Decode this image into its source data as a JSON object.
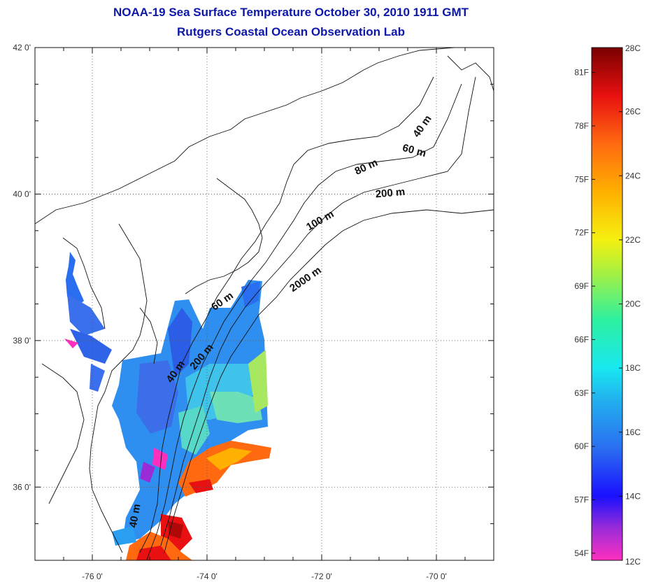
{
  "header": {
    "title": "NOAA-19 Sea Surface Temperature October 30, 2010 1911 GMT",
    "subtitle": "Rutgers Coastal Ocean Observation Lab"
  },
  "map": {
    "lon_range": [
      -77,
      -69
    ],
    "lat_range": [
      35,
      42
    ],
    "lat_labels": [
      {
        "lat": 42,
        "label": "42 0'"
      },
      {
        "lat": 40,
        "label": "40 0'"
      },
      {
        "lat": 38,
        "label": "38 0'"
      },
      {
        "lat": 36,
        "label": "36 0'"
      }
    ],
    "lon_labels": [
      {
        "lon": -76,
        "label": "-76 0'"
      },
      {
        "lon": -74,
        "label": "-74 0'"
      },
      {
        "lon": -72,
        "label": "-72 0'"
      },
      {
        "lon": -70,
        "label": "-70 0'"
      }
    ],
    "grid": "dotted",
    "isobath_labels": [
      {
        "text": "40 m",
        "lon": -70.2,
        "lat": 40.9,
        "angle": -55
      },
      {
        "text": "60 m",
        "lon": -70.4,
        "lat": 40.55,
        "angle": 15
      },
      {
        "text": "80 m",
        "lon": -71.2,
        "lat": 40.33,
        "angle": -25
      },
      {
        "text": "200 m",
        "lon": -70.8,
        "lat": 39.97,
        "angle": -5
      },
      {
        "text": "100 m",
        "lon": -72.0,
        "lat": 39.6,
        "angle": -30
      },
      {
        "text": "2000 m",
        "lon": -72.25,
        "lat": 38.8,
        "angle": -35
      },
      {
        "text": "60 m",
        "lon": -73.7,
        "lat": 38.5,
        "angle": -35
      },
      {
        "text": "200 m",
        "lon": -74.05,
        "lat": 37.75,
        "angle": -50
      },
      {
        "text": "40 m",
        "lon": -74.5,
        "lat": 37.55,
        "angle": -55
      },
      {
        "text": "40 m",
        "lon": -75.2,
        "lat": 35.6,
        "angle": -80
      }
    ]
  },
  "colorbar": {
    "min_c": 12,
    "max_c": 28,
    "celsius_labels": [
      {
        "value": 28,
        "label": "28C"
      },
      {
        "value": 26,
        "label": "26C"
      },
      {
        "value": 24,
        "label": "24C"
      },
      {
        "value": 22,
        "label": "22C"
      },
      {
        "value": 20,
        "label": "20C"
      },
      {
        "value": 18,
        "label": "18C"
      },
      {
        "value": 16,
        "label": "16C"
      },
      {
        "value": 14,
        "label": "14C"
      },
      {
        "value": 12,
        "label": "12C"
      }
    ],
    "fahrenheit_labels": [
      {
        "value": 81,
        "label": "81F"
      },
      {
        "value": 78,
        "label": "78F"
      },
      {
        "value": 75,
        "label": "75F"
      },
      {
        "value": 72,
        "label": "72F"
      },
      {
        "value": 69,
        "label": "69F"
      },
      {
        "value": 66,
        "label": "66F"
      },
      {
        "value": 63,
        "label": "63F"
      },
      {
        "value": 60,
        "label": "60F"
      },
      {
        "value": 57,
        "label": "57F"
      },
      {
        "value": 54,
        "label": "54F"
      }
    ],
    "stops": [
      {
        "c": 12,
        "color": "#ff2fbf"
      },
      {
        "c": 13,
        "color": "#9a2cd8"
      },
      {
        "c": 14,
        "color": "#1a10ff"
      },
      {
        "c": 15.5,
        "color": "#2a6ef0"
      },
      {
        "c": 17,
        "color": "#22b0ee"
      },
      {
        "c": 18,
        "color": "#18e8f0"
      },
      {
        "c": 19.5,
        "color": "#2df0a0"
      },
      {
        "c": 21,
        "color": "#a8f040"
      },
      {
        "c": 22,
        "color": "#f5f010"
      },
      {
        "c": 23.5,
        "color": "#ffb000"
      },
      {
        "c": 25,
        "color": "#ff6a10"
      },
      {
        "c": 26.5,
        "color": "#e81010"
      },
      {
        "c": 28,
        "color": "#7a0000"
      }
    ]
  }
}
